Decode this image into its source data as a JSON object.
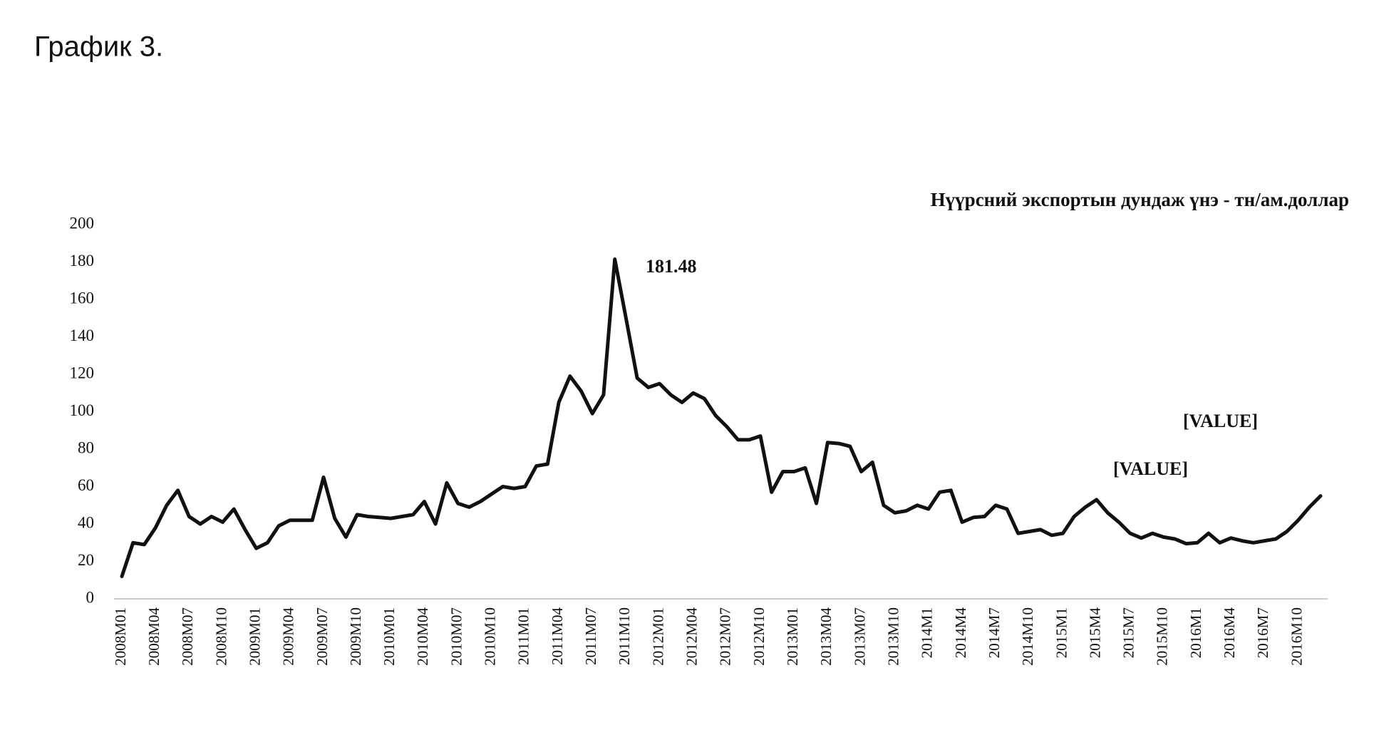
{
  "heading": "График 3.",
  "chart_data": {
    "type": "line",
    "title": "Нүүрсний экспортын дундаж үнэ - тн/ам.доллар",
    "categories": [
      "2008M01",
      null,
      null,
      "2008M04",
      null,
      null,
      "2008M07",
      null,
      null,
      "2008M10",
      null,
      null,
      "2009M01",
      null,
      null,
      "2009M04",
      null,
      null,
      "2009M07",
      null,
      null,
      "2009M10",
      null,
      null,
      "2010M01",
      null,
      null,
      "2010M04",
      null,
      null,
      "2010M07",
      null,
      null,
      "2010M10",
      null,
      null,
      "2011M01",
      null,
      null,
      "2011M04",
      null,
      null,
      "2011M07",
      null,
      null,
      "2011M10",
      null,
      null,
      "2012M01",
      null,
      null,
      "2012M04",
      null,
      null,
      "2012M07",
      null,
      null,
      "2012M10",
      null,
      null,
      "2013M01",
      null,
      null,
      "2013M04",
      null,
      null,
      "2013M07",
      null,
      null,
      "2013M10",
      null,
      null,
      "2014M1",
      null,
      null,
      "2014M4",
      null,
      null,
      "2014M7",
      null,
      null,
      "2014M10",
      null,
      null,
      "2015M1",
      null,
      null,
      "2015M4",
      null,
      null,
      "2015M7",
      null,
      null,
      "2015M10",
      null,
      null,
      "2016M1",
      null,
      null,
      "2016M4",
      null,
      null,
      "2016M7",
      null,
      null,
      "2016M10",
      null,
      null
    ],
    "values": [
      12,
      30,
      29,
      38,
      50,
      58,
      44,
      40,
      44,
      41,
      48,
      37,
      27,
      30,
      39,
      42,
      42,
      42,
      65,
      43,
      33,
      45,
      44,
      43.5,
      43,
      44,
      45,
      52,
      40,
      62,
      51,
      49,
      52,
      56,
      60,
      59,
      60,
      71,
      72,
      105,
      119,
      111,
      99,
      109,
      181.48,
      150,
      118,
      113,
      115,
      109,
      105,
      110,
      107,
      98,
      92,
      85,
      85,
      87,
      57,
      68,
      68,
      70,
      51,
      83.5,
      83,
      81.5,
      68,
      73,
      50,
      46,
      47,
      50,
      48,
      57,
      58,
      41,
      43.5,
      44,
      50,
      48,
      35,
      36,
      37,
      34,
      35,
      44,
      49,
      53,
      46,
      41,
      35,
      32.5,
      35,
      33,
      32,
      29.5,
      30,
      35,
      30,
      32.5,
      31,
      30,
      31,
      32,
      36,
      42,
      49,
      55
    ],
    "color": "#111111",
    "annotations": [
      "181.48",
      "[VALUE]",
      "[VALUE]"
    ],
    "ylim": [
      0,
      200
    ],
    "yticks": [
      0,
      20,
      40,
      60,
      80,
      100,
      120,
      140,
      160,
      180,
      200
    ],
    "grid": false
  }
}
